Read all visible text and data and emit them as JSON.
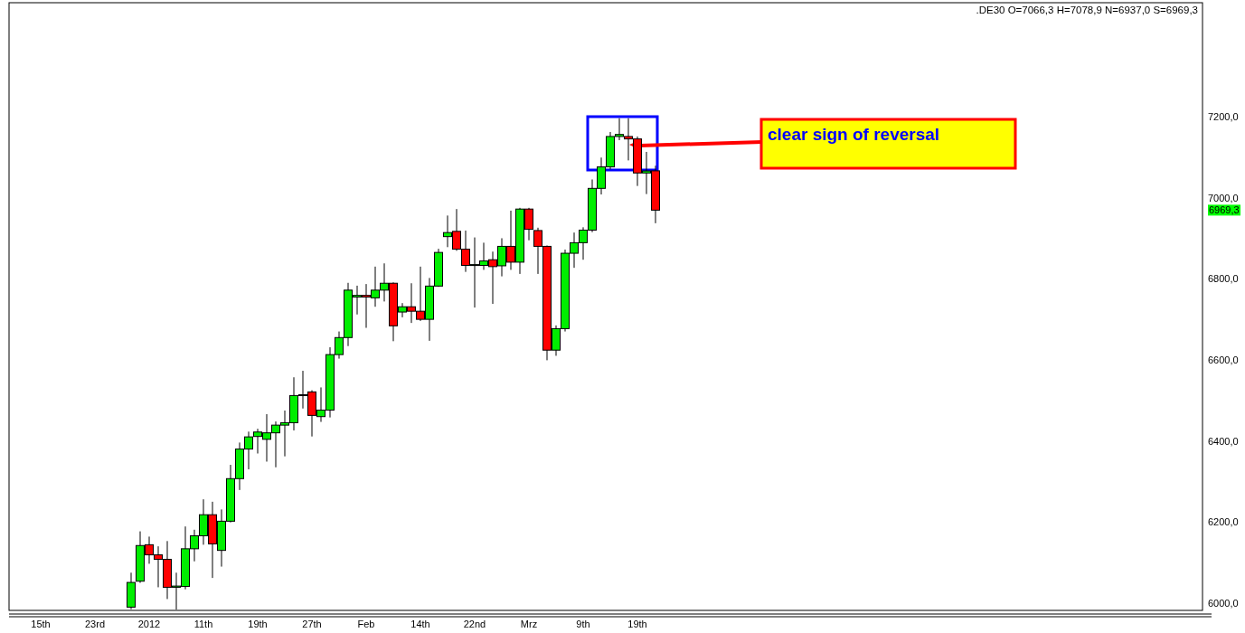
{
  "chart_data": {
    "type": "candlestick",
    "title": ".DE30 O=7066,3 H=7078,9 N=6937,0 S=6969,3",
    "categories": [
      null,
      null,
      null,
      "15th",
      null,
      null,
      null,
      null,
      null,
      "23rd",
      null,
      null,
      null,
      null,
      null,
      "2012",
      null,
      null,
      null,
      null,
      null,
      "11th",
      null,
      null,
      null,
      null,
      null,
      "19th",
      null,
      null,
      null,
      null,
      null,
      "27th",
      null,
      null,
      null,
      null,
      null,
      "Feb",
      null,
      null,
      null,
      null,
      null,
      "14th",
      null,
      null,
      null,
      null,
      null,
      "22nd",
      null,
      null,
      null,
      null,
      null,
      "Mrz",
      null,
      null,
      null,
      null,
      null,
      "9th",
      null,
      null,
      null,
      null,
      null,
      "19th",
      null,
      null,
      null,
      null,
      null,
      null,
      null,
      null,
      null,
      null,
      null,
      null,
      null,
      null,
      null,
      null,
      null,
      null,
      null,
      null,
      null,
      null,
      null,
      null,
      null,
      null,
      null,
      null,
      null,
      null,
      null,
      null,
      null,
      null,
      null,
      null,
      null,
      null,
      null,
      null,
      null,
      null,
      null,
      null,
      null,
      null,
      null,
      null,
      null,
      null,
      null,
      null,
      null,
      null,
      null,
      null,
      null,
      null,
      null,
      null,
      null,
      null
    ],
    "ohlc": [
      null,
      null,
      null,
      null,
      null,
      null,
      null,
      null,
      null,
      null,
      null,
      null,
      null,
      [
        5990,
        6075,
        5985,
        6051
      ],
      [
        6054,
        6177,
        6050,
        6142
      ],
      [
        6144,
        6164,
        6097,
        6119
      ],
      [
        6119,
        6140,
        6039,
        6108
      ],
      [
        6108,
        6153,
        6010,
        6039
      ],
      [
        6039,
        6075,
        5984,
        6042
      ],
      [
        6041,
        6189,
        6034,
        6134
      ],
      [
        6134,
        6181,
        6103,
        6166
      ],
      [
        6166,
        6256,
        6144,
        6218
      ],
      [
        6218,
        6250,
        6062,
        6146
      ],
      [
        6130,
        6231,
        6090,
        6202
      ],
      [
        6202,
        6341,
        6199,
        6307
      ],
      [
        6307,
        6396,
        6279,
        6380
      ],
      [
        6380,
        6423,
        6330,
        6410
      ],
      [
        6411,
        6430,
        6369,
        6422
      ],
      [
        6404,
        6466,
        6349,
        6420
      ],
      [
        6420,
        6448,
        6335,
        6439
      ],
      [
        6439,
        6475,
        6362,
        6445
      ],
      [
        6445,
        6557,
        6426,
        6512
      ],
      [
        6512,
        6573,
        6480,
        6514
      ],
      [
        6521,
        6525,
        6411,
        6463
      ],
      [
        6460,
        6532,
        6447,
        6476
      ],
      [
        6476,
        6631,
        6458,
        6613
      ],
      [
        6613,
        6670,
        6603,
        6655
      ],
      [
        6655,
        6790,
        6634,
        6772
      ],
      [
        6755,
        6783,
        6712,
        6759
      ],
      [
        6759,
        6787,
        6679,
        6755
      ],
      [
        6753,
        6830,
        6731,
        6772
      ],
      [
        6772,
        6838,
        6744,
        6789
      ],
      [
        6789,
        6791,
        6646,
        6684
      ],
      [
        6718,
        6740,
        6705,
        6731
      ],
      [
        6731,
        6789,
        6691,
        6720
      ],
      [
        6720,
        6830,
        6696,
        6700
      ],
      [
        6700,
        6802,
        6647,
        6782
      ],
      [
        6782,
        6874,
        6780,
        6865
      ],
      [
        6904,
        6956,
        6878,
        6914
      ],
      [
        6917,
        6972,
        6869,
        6873
      ],
      [
        6873,
        6919,
        6817,
        6833
      ],
      [
        6833,
        6902,
        6729,
        6835
      ],
      [
        6833,
        6889,
        6822,
        6844
      ],
      [
        6847,
        6867,
        6738,
        6830
      ],
      [
        6832,
        6900,
        6806,
        6880
      ],
      [
        6880,
        6968,
        6822,
        6841
      ],
      [
        6841,
        6975,
        6812,
        6972
      ],
      [
        6972,
        6975,
        6895,
        6922
      ],
      [
        6919,
        6926,
        6812,
        6880
      ],
      [
        6880,
        6882,
        6599,
        6624
      ],
      [
        6624,
        6685,
        6610,
        6677
      ],
      [
        6677,
        6872,
        6670,
        6863
      ],
      [
        6863,
        6914,
        6827,
        6889
      ],
      [
        6889,
        6927,
        6847,
        6920
      ],
      [
        6920,
        7045,
        6915,
        7023
      ],
      [
        7023,
        7099,
        7008,
        7076
      ],
      [
        7076,
        7162,
        7070,
        7151
      ],
      [
        7151,
        7196,
        7142,
        7156
      ],
      [
        7151,
        7196,
        7092,
        7145
      ],
      [
        7145,
        7151,
        7029,
        7061
      ],
      [
        7061,
        7113,
        7009,
        7066
      ],
      [
        7066.3,
        7078.9,
        6937,
        6969.3
      ],
      null,
      null,
      null,
      null,
      null,
      null,
      null,
      null,
      null,
      null,
      null,
      null,
      null,
      null,
      null,
      null,
      null,
      null,
      null,
      null,
      null,
      null,
      null,
      null,
      null,
      null,
      null,
      null,
      null,
      null,
      null,
      null,
      null,
      null,
      null,
      null,
      null,
      null,
      null,
      null,
      null,
      null,
      null,
      null,
      null,
      null,
      null,
      null,
      null,
      null,
      null,
      null,
      null,
      null,
      null,
      null,
      null,
      null,
      null,
      null
    ],
    "ylim": [
      5982,
      7481
    ],
    "yticks": [
      {
        "value": 6000,
        "label": "6000,0"
      },
      {
        "value": 6200,
        "label": "6200,0"
      },
      {
        "value": 6400,
        "label": "6400,0"
      },
      {
        "value": 6600,
        "label": "6600,0"
      },
      {
        "value": 6800,
        "label": "6800,0"
      },
      {
        "value": 7000,
        "label": "7000,0"
      },
      {
        "value": 7200,
        "label": "7200,0"
      }
    ],
    "annotations": [
      "clear sign of reversal",
      "6969,3"
    ]
  }
}
